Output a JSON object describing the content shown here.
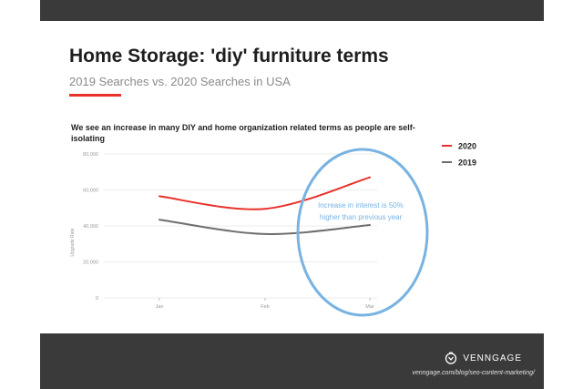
{
  "header": {
    "title": "Home Storage: 'diy' furniture terms",
    "subtitle": "2019 Searches vs. 2020 Searches in USA"
  },
  "note": "We see an increase in many DIY and home organization related terms as people are self-isolating",
  "chart_data": {
    "type": "line",
    "categories": [
      "Jan",
      "Feb",
      "Mar"
    ],
    "ylabel": "Upgrade Rate",
    "ylim": [
      0,
      80000
    ],
    "yticks": [
      "0",
      "20,000",
      "40,000",
      "60,000",
      "80,000"
    ],
    "grid": true,
    "legend_position": "top-right",
    "series": [
      {
        "name": "2020",
        "color": "#e8322a",
        "values": [
          56500,
          49500,
          67000
        ]
      },
      {
        "name": "2019",
        "color": "#6e6e6e",
        "values": [
          43500,
          35500,
          40500
        ]
      }
    ],
    "annotation": {
      "line1": "Increase in interest is 50%",
      "line2": "higher than previous year",
      "color": "#78b3e2"
    }
  },
  "footer": {
    "brand": "VENNGAGE",
    "brand_icon": "venngage-logo-icon",
    "url": "venngage.com/blog/seo-content-marketing/"
  }
}
